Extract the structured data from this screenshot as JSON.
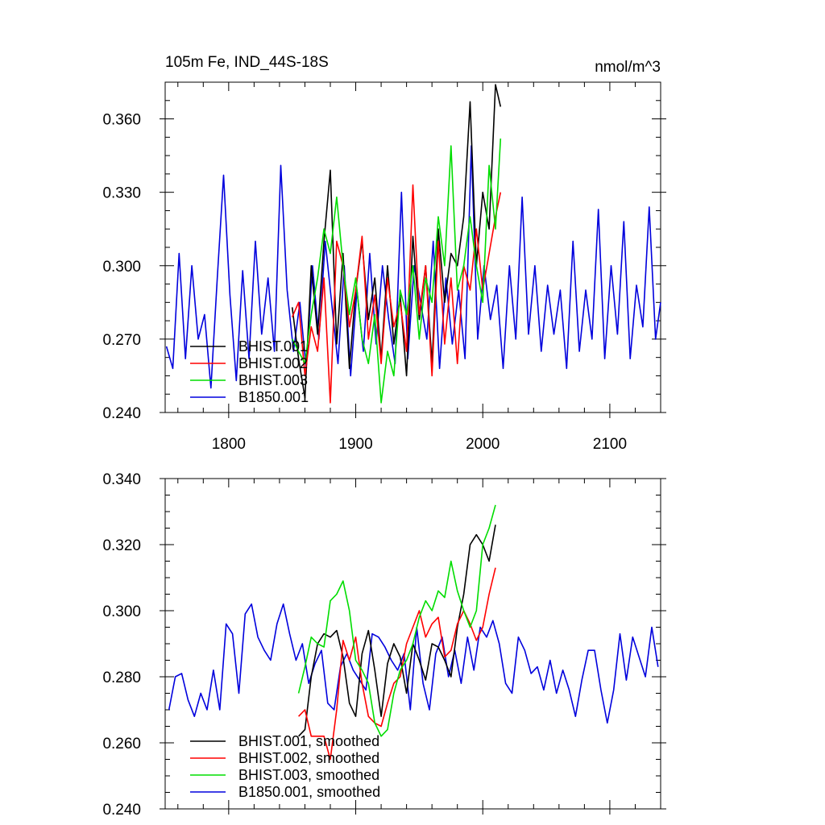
{
  "colors": {
    "BHIST.001": "#000000",
    "BHIST.002": "#ff0000",
    "BHIST.003": "#00dd00",
    "B1850.001": "#0000dd"
  },
  "chart_data": [
    {
      "type": "line",
      "title": "105m Fe, IND_44S-18S",
      "units": "nmol/m^3",
      "xlim": [
        1750,
        2140
      ],
      "ylim": [
        0.24,
        0.375
      ],
      "xticks": [
        1800,
        1900,
        2000,
        2100
      ],
      "xtick_labels": [
        "1800",
        "1900",
        "2000",
        "2100"
      ],
      "yticks": [
        0.24,
        0.27,
        0.3,
        0.33,
        0.36
      ],
      "ytick_labels": [
        "0.240",
        "0.270",
        "0.300",
        "0.330",
        "0.360"
      ],
      "legend_position": "lower-left",
      "legend": [
        "BHIST.001",
        "BHIST.002",
        "BHIST.003",
        "B1850.001"
      ],
      "series": [
        {
          "name": "BHIST.001",
          "x": [
            1850,
            1855,
            1860,
            1865,
            1870,
            1875,
            1880,
            1885,
            1890,
            1895,
            1900,
            1905,
            1910,
            1915,
            1920,
            1925,
            1930,
            1935,
            1940,
            1945,
            1950,
            1955,
            1960,
            1965,
            1970,
            1975,
            1980,
            1985,
            1990,
            1995,
            2000,
            2005,
            2010,
            2014
          ],
          "values": [
            0.283,
            0.262,
            0.246,
            0.3,
            0.272,
            0.31,
            0.339,
            0.268,
            0.305,
            0.258,
            0.29,
            0.31,
            0.278,
            0.295,
            0.262,
            0.3,
            0.268,
            0.288,
            0.255,
            0.312,
            0.278,
            0.3,
            0.26,
            0.315,
            0.285,
            0.305,
            0.3,
            0.32,
            0.367,
            0.3,
            0.33,
            0.315,
            0.374,
            0.365
          ]
        },
        {
          "name": "BHIST.002",
          "x": [
            1850,
            1855,
            1860,
            1865,
            1870,
            1875,
            1880,
            1885,
            1890,
            1895,
            1900,
            1905,
            1910,
            1915,
            1920,
            1925,
            1930,
            1935,
            1940,
            1945,
            1950,
            1955,
            1960,
            1965,
            1970,
            1975,
            1980,
            1985,
            1990,
            1995,
            2000,
            2005,
            2010,
            2014
          ],
          "values": [
            0.279,
            0.285,
            0.255,
            0.275,
            0.265,
            0.295,
            0.244,
            0.31,
            0.3,
            0.275,
            0.29,
            0.312,
            0.27,
            0.288,
            0.26,
            0.295,
            0.275,
            0.285,
            0.265,
            0.333,
            0.28,
            0.3,
            0.255,
            0.31,
            0.268,
            0.295,
            0.26,
            0.3,
            0.29,
            0.315,
            0.29,
            0.305,
            0.32,
            0.33
          ]
        },
        {
          "name": "BHIST.003",
          "x": [
            1850,
            1855,
            1860,
            1865,
            1870,
            1875,
            1880,
            1885,
            1890,
            1895,
            1900,
            1905,
            1910,
            1915,
            1920,
            1925,
            1930,
            1935,
            1940,
            1945,
            1950,
            1955,
            1960,
            1965,
            1970,
            1975,
            1980,
            1985,
            1990,
            1995,
            2000,
            2005,
            2010,
            2014
          ],
          "values": [
            0.27,
            0.265,
            0.26,
            0.28,
            0.295,
            0.315,
            0.305,
            0.328,
            0.3,
            0.28,
            0.295,
            0.27,
            0.26,
            0.28,
            0.244,
            0.265,
            0.255,
            0.29,
            0.28,
            0.3,
            0.27,
            0.295,
            0.285,
            0.32,
            0.3,
            0.349,
            0.29,
            0.3,
            0.32,
            0.3,
            0.285,
            0.341,
            0.315,
            0.352
          ]
        },
        {
          "name": "B1850.001",
          "x": [
            1751,
            1756,
            1761,
            1766,
            1771,
            1776,
            1781,
            1786,
            1791,
            1796,
            1801,
            1806,
            1811,
            1816,
            1821,
            1826,
            1831,
            1836,
            1841,
            1846,
            1851,
            1856,
            1861,
            1866,
            1871,
            1876,
            1881,
            1886,
            1891,
            1896,
            1901,
            1906,
            1911,
            1916,
            1921,
            1926,
            1931,
            1936,
            1941,
            1946,
            1951,
            1956,
            1961,
            1966,
            1971,
            1976,
            1981,
            1986,
            1991,
            1996,
            2001,
            2006,
            2011,
            2016,
            2021,
            2026,
            2031,
            2036,
            2041,
            2046,
            2051,
            2056,
            2061,
            2066,
            2071,
            2076,
            2081,
            2086,
            2091,
            2096,
            2101,
            2106,
            2111,
            2116,
            2121,
            2126,
            2131,
            2136,
            2140
          ],
          "values": [
            0.267,
            0.258,
            0.305,
            0.262,
            0.3,
            0.27,
            0.28,
            0.25,
            0.295,
            0.337,
            0.288,
            0.253,
            0.298,
            0.262,
            0.31,
            0.272,
            0.295,
            0.265,
            0.341,
            0.29,
            0.265,
            0.285,
            0.258,
            0.3,
            0.27,
            0.31,
            0.285,
            0.26,
            0.3,
            0.255,
            0.29,
            0.265,
            0.305,
            0.268,
            0.3,
            0.278,
            0.26,
            0.33,
            0.262,
            0.3,
            0.285,
            0.27,
            0.31,
            0.258,
            0.295,
            0.268,
            0.29,
            0.262,
            0.349,
            0.27,
            0.3,
            0.278,
            0.292,
            0.258,
            0.3,
            0.27,
            0.328,
            0.272,
            0.3,
            0.265,
            0.292,
            0.272,
            0.29,
            0.258,
            0.31,
            0.265,
            0.29,
            0.27,
            0.323,
            0.262,
            0.3,
            0.272,
            0.318,
            0.262,
            0.292,
            0.275,
            0.324,
            0.27,
            0.285
          ]
        }
      ]
    },
    {
      "type": "line",
      "title": "",
      "xlim": [
        1750,
        2140
      ],
      "ylim": [
        0.24,
        0.34
      ],
      "xticks": [
        1800,
        1900,
        2000,
        2100
      ],
      "xtick_labels": [],
      "yticks": [
        0.24,
        0.26,
        0.28,
        0.3,
        0.32,
        0.34
      ],
      "ytick_labels": [
        "0.240",
        "0.260",
        "0.280",
        "0.300",
        "0.320",
        "0.340"
      ],
      "legend_position": "lower-left",
      "legend": [
        "BHIST.001, smoothed",
        "BHIST.002, smoothed",
        "BHIST.003, smoothed",
        "B1850.001, smoothed"
      ],
      "series": [
        {
          "name": "BHIST.001, smoothed",
          "x": [
            1855,
            1860,
            1865,
            1870,
            1875,
            1880,
            1885,
            1890,
            1895,
            1900,
            1905,
            1910,
            1915,
            1920,
            1925,
            1930,
            1935,
            1940,
            1945,
            1950,
            1955,
            1960,
            1965,
            1970,
            1975,
            1980,
            1985,
            1990,
            1995,
            2000,
            2005,
            2010
          ],
          "values": [
            0.262,
            0.264,
            0.28,
            0.29,
            0.293,
            0.292,
            0.294,
            0.286,
            0.272,
            0.268,
            0.287,
            0.294,
            0.282,
            0.268,
            0.284,
            0.29,
            0.286,
            0.275,
            0.29,
            0.285,
            0.279,
            0.29,
            0.289,
            0.285,
            0.28,
            0.295,
            0.305,
            0.32,
            0.323,
            0.32,
            0.315,
            0.326
          ]
        },
        {
          "name": "BHIST.002, smoothed",
          "x": [
            1855,
            1860,
            1865,
            1870,
            1875,
            1880,
            1885,
            1890,
            1895,
            1900,
            1905,
            1910,
            1915,
            1920,
            1925,
            1930,
            1935,
            1940,
            1945,
            1950,
            1955,
            1960,
            1965,
            1970,
            1975,
            1980,
            1985,
            1990,
            1995,
            2000,
            2005,
            2010
          ],
          "values": [
            0.268,
            0.27,
            0.262,
            0.262,
            0.262,
            0.255,
            0.27,
            0.291,
            0.285,
            0.292,
            0.278,
            0.268,
            0.266,
            0.265,
            0.272,
            0.278,
            0.28,
            0.29,
            0.295,
            0.3,
            0.292,
            0.296,
            0.298,
            0.286,
            0.288,
            0.296,
            0.3,
            0.296,
            0.291,
            0.295,
            0.305,
            0.313
          ]
        },
        {
          "name": "BHIST.003, smoothed",
          "x": [
            1855,
            1860,
            1865,
            1870,
            1875,
            1880,
            1885,
            1890,
            1895,
            1900,
            1905,
            1910,
            1915,
            1920,
            1925,
            1930,
            1935,
            1940,
            1945,
            1950,
            1955,
            1960,
            1965,
            1970,
            1975,
            1980,
            1985,
            1990,
            1995,
            2000,
            2005,
            2010
          ],
          "values": [
            0.275,
            0.283,
            0.292,
            0.29,
            0.289,
            0.303,
            0.305,
            0.309,
            0.3,
            0.285,
            0.282,
            0.278,
            0.266,
            0.262,
            0.264,
            0.275,
            0.282,
            0.285,
            0.29,
            0.298,
            0.303,
            0.3,
            0.306,
            0.304,
            0.315,
            0.306,
            0.3,
            0.295,
            0.3,
            0.32,
            0.325,
            0.332
          ]
        },
        {
          "name": "B1850.001, smoothed",
          "x": [
            1753,
            1758,
            1763,
            1768,
            1773,
            1778,
            1783,
            1788,
            1793,
            1798,
            1803,
            1808,
            1813,
            1818,
            1823,
            1828,
            1833,
            1838,
            1843,
            1848,
            1853,
            1858,
            1863,
            1868,
            1873,
            1878,
            1883,
            1888,
            1893,
            1898,
            1903,
            1908,
            1913,
            1918,
            1923,
            1928,
            1933,
            1938,
            1943,
            1948,
            1953,
            1958,
            1963,
            1968,
            1973,
            1978,
            1983,
            1988,
            1993,
            1998,
            2003,
            2008,
            2013,
            2018,
            2023,
            2028,
            2033,
            2038,
            2043,
            2048,
            2053,
            2058,
            2063,
            2068,
            2073,
            2078,
            2083,
            2088,
            2093,
            2098,
            2103,
            2108,
            2113,
            2118,
            2123,
            2128,
            2133,
            2138
          ],
          "values": [
            0.27,
            0.28,
            0.281,
            0.273,
            0.268,
            0.275,
            0.27,
            0.282,
            0.27,
            0.296,
            0.293,
            0.275,
            0.299,
            0.302,
            0.292,
            0.288,
            0.285,
            0.296,
            0.302,
            0.293,
            0.285,
            0.29,
            0.278,
            0.284,
            0.288,
            0.272,
            0.27,
            0.283,
            0.287,
            0.282,
            0.279,
            0.276,
            0.293,
            0.292,
            0.289,
            0.285,
            0.282,
            0.287,
            0.27,
            0.295,
            0.278,
            0.27,
            0.287,
            0.292,
            0.28,
            0.288,
            0.278,
            0.292,
            0.282,
            0.295,
            0.292,
            0.297,
            0.29,
            0.278,
            0.275,
            0.292,
            0.288,
            0.281,
            0.283,
            0.276,
            0.285,
            0.275,
            0.282,
            0.276,
            0.268,
            0.279,
            0.288,
            0.288,
            0.276,
            0.266,
            0.276,
            0.293,
            0.279,
            0.292,
            0.286,
            0.28,
            0.295,
            0.283
          ]
        }
      ]
    }
  ]
}
